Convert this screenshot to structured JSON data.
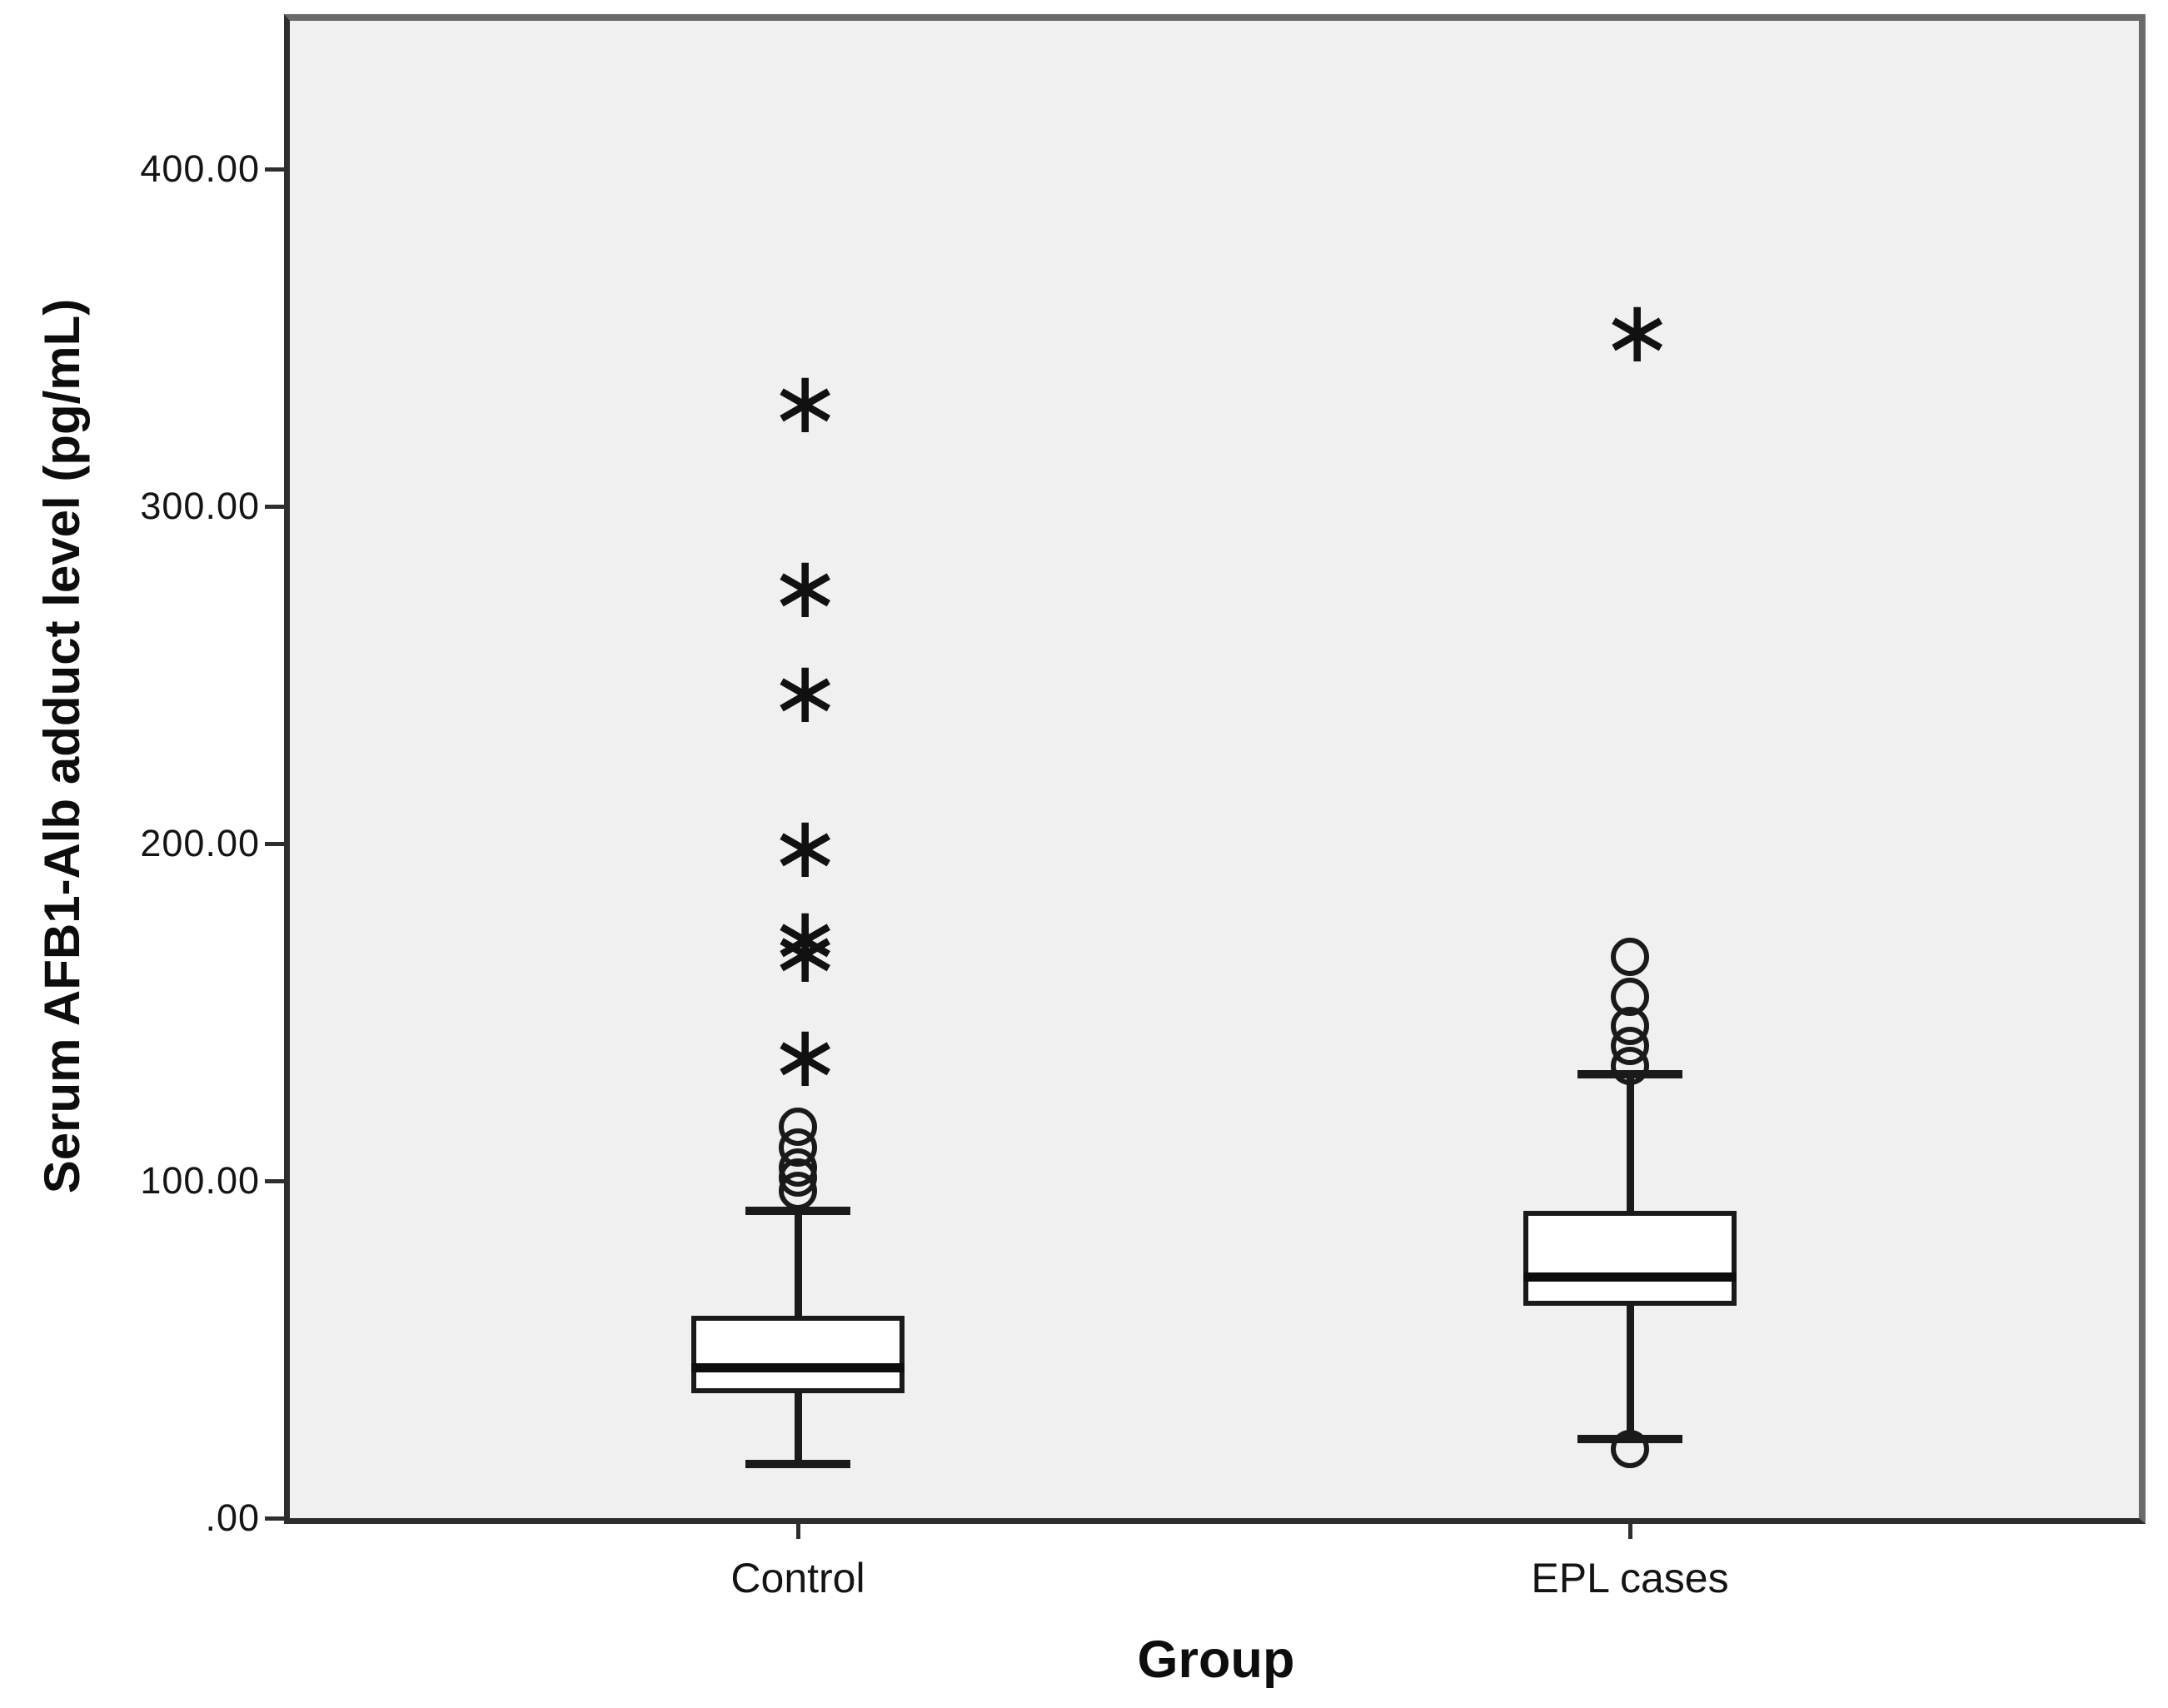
{
  "figure": {
    "background_color": "#ffffff",
    "plot_background_color": "#f0f0f0",
    "frame_color": "#6a6a6a",
    "axis_color": "#2e2e2e",
    "data_ink_color": "#1a1a1a"
  },
  "chart_data": {
    "type": "boxplot",
    "title": "",
    "xlabel": "Group",
    "ylabel": "Serum AFB1-Alb adduct level (pg/mL)",
    "ylim": [
      0,
      444
    ],
    "grid": false,
    "legend": false,
    "outlier_marker": "circle",
    "extreme_marker": "asterisk",
    "yticks": [
      {
        "value": 0,
        "label": ".00"
      },
      {
        "value": 100,
        "label": "100.00"
      },
      {
        "value": 200,
        "label": "200.00"
      },
      {
        "value": 300,
        "label": "300.00"
      },
      {
        "value": 400,
        "label": "400.00"
      }
    ],
    "groups": [
      {
        "label": "Control",
        "q1": 37,
        "median": 44.5,
        "q3": 60,
        "whisker_low": 16,
        "whisker_high": 91,
        "outliers_circle": [
          97,
          101,
          104,
          110,
          116
        ],
        "outliers_extreme": [
          137,
          168,
          172,
          199,
          245,
          276,
          331
        ]
      },
      {
        "label": "EPL cases",
        "q1": 63,
        "median": 71.5,
        "q3": 91,
        "whisker_low": 23.5,
        "whisker_high": 131.5,
        "outliers_circle": [
          20.5,
          134,
          140,
          146,
          154.5,
          166.5
        ],
        "outliers_extreme": [
          352
        ]
      }
    ]
  }
}
